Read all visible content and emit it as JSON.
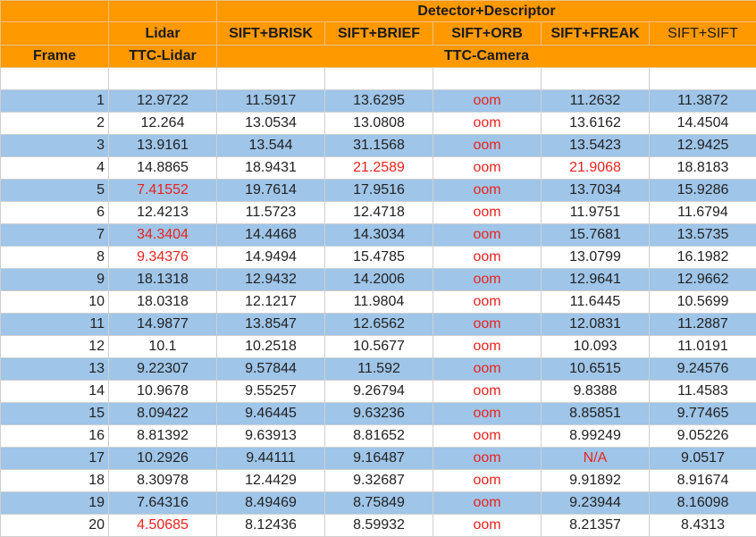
{
  "header": {
    "group_label": "Detector+Descriptor",
    "frame_label": "Frame",
    "lidar_label": "Lidar",
    "ttc_lidar_label": "TTC-Lidar",
    "ttc_camera_label": "TTC-Camera",
    "combos": [
      "SIFT+BRISK",
      "SIFT+BRIEF",
      "SIFT+ORB",
      "SIFT+FREAK",
      "SIFT+SIFT"
    ]
  },
  "highlight_color": "#e8231f",
  "rows": [
    {
      "frame": "1",
      "lidar": "12.9722",
      "c": [
        "11.5917",
        "13.6295",
        "oom",
        "11.2632",
        "11.3872"
      ],
      "red": [
        3
      ]
    },
    {
      "frame": "2",
      "lidar": "12.264",
      "c": [
        "13.0534",
        "13.0808",
        "oom",
        "13.6162",
        "14.4504"
      ],
      "red": [
        3
      ]
    },
    {
      "frame": "3",
      "lidar": "13.9161",
      "c": [
        "13.544",
        "31.1568",
        "oom",
        "13.5423",
        "12.9425"
      ],
      "red": [
        3
      ]
    },
    {
      "frame": "4",
      "lidar": "14.8865",
      "c": [
        "18.9431",
        "21.2589",
        "oom",
        "21.9068",
        "18.8183"
      ],
      "red": [
        2,
        3,
        4
      ]
    },
    {
      "frame": "5",
      "lidar": "7.41552",
      "c": [
        "19.7614",
        "17.9516",
        "oom",
        "13.7034",
        "15.9286"
      ],
      "red": [
        0,
        3
      ]
    },
    {
      "frame": "6",
      "lidar": "12.4213",
      "c": [
        "11.5723",
        "12.4718",
        "oom",
        "11.9751",
        "11.6794"
      ],
      "red": [
        3
      ]
    },
    {
      "frame": "7",
      "lidar": "34.3404",
      "c": [
        "14.4468",
        "14.3034",
        "oom",
        "15.7681",
        "13.5735"
      ],
      "red": [
        0,
        3
      ]
    },
    {
      "frame": "8",
      "lidar": "9.34376",
      "c": [
        "14.9494",
        "15.4785",
        "oom",
        "13.0799",
        "16.1982"
      ],
      "red": [
        0,
        3
      ]
    },
    {
      "frame": "9",
      "lidar": "18.1318",
      "c": [
        "12.9432",
        "14.2006",
        "oom",
        "12.9641",
        "12.9662"
      ],
      "red": [
        3
      ]
    },
    {
      "frame": "10",
      "lidar": "18.0318",
      "c": [
        "12.1217",
        "11.9804",
        "oom",
        "11.6445",
        "10.5699"
      ],
      "red": [
        3
      ]
    },
    {
      "frame": "11",
      "lidar": "14.9877",
      "c": [
        "13.8547",
        "12.6562",
        "oom",
        "12.0831",
        "11.2887"
      ],
      "red": [
        3
      ]
    },
    {
      "frame": "12",
      "lidar": "10.1",
      "c": [
        "10.2518",
        "10.5677",
        "oom",
        "10.093",
        "11.0191"
      ],
      "red": [
        3
      ]
    },
    {
      "frame": "13",
      "lidar": "9.22307",
      "c": [
        "9.57844",
        "11.592",
        "oom",
        "10.6515",
        "9.24576"
      ],
      "red": [
        3
      ]
    },
    {
      "frame": "14",
      "lidar": "10.9678",
      "c": [
        "9.55257",
        "9.26794",
        "oom",
        "9.8388",
        "11.4583"
      ],
      "red": [
        3
      ]
    },
    {
      "frame": "15",
      "lidar": "8.09422",
      "c": [
        "9.46445",
        "9.63236",
        "oom",
        "8.85851",
        "9.77465"
      ],
      "red": [
        3
      ]
    },
    {
      "frame": "16",
      "lidar": "8.81392",
      "c": [
        "9.63913",
        "8.81652",
        "oom",
        "8.99249",
        "9.05226"
      ],
      "red": [
        3
      ]
    },
    {
      "frame": "17",
      "lidar": "10.2926",
      "c": [
        "9.44111",
        "9.16487",
        "oom",
        "N/A",
        "9.0517"
      ],
      "red": [
        3,
        4
      ]
    },
    {
      "frame": "18",
      "lidar": "8.30978",
      "c": [
        "12.4429",
        "9.32687",
        "oom",
        "9.91892",
        "8.91674"
      ],
      "red": [
        3
      ]
    },
    {
      "frame": "19",
      "lidar": "7.64316",
      "c": [
        "8.49469",
        "8.75849",
        "oom",
        "9.23944",
        "8.16098"
      ],
      "red": [
        3
      ]
    },
    {
      "frame": "20",
      "lidar": "4.50685",
      "c": [
        "8.12436",
        "8.59932",
        "oom",
        "8.21357",
        "8.4313"
      ],
      "red": [
        0,
        3
      ]
    }
  ]
}
